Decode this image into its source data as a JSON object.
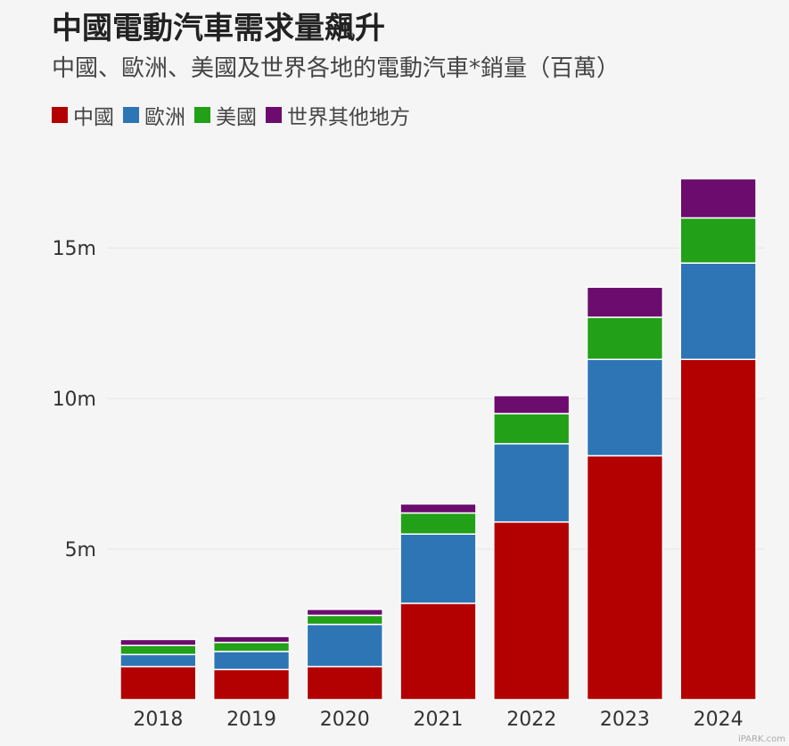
{
  "title": "中國電動汽車需求量飆升",
  "subtitle": "中國、歐洲、美國及世界各地的電動汽車*銷量（百萬）",
  "watermark": "iPARK.com",
  "colors": {
    "china": "#b30000",
    "europe": "#2e75b6",
    "usa": "#22a018",
    "rest": "#6b0c6e"
  },
  "chart_data": {
    "type": "bar",
    "stacked": true,
    "categories": [
      "2018",
      "2019",
      "2020",
      "2021",
      "2022",
      "2023",
      "2024"
    ],
    "series": [
      {
        "name": "中國",
        "key": "china",
        "values": [
          1.1,
          1.0,
          1.1,
          3.2,
          5.9,
          8.1,
          11.3
        ]
      },
      {
        "name": "歐洲",
        "key": "europe",
        "values": [
          0.4,
          0.6,
          1.4,
          2.3,
          2.6,
          3.2,
          3.2
        ]
      },
      {
        "name": "美國",
        "key": "usa",
        "values": [
          0.3,
          0.3,
          0.3,
          0.7,
          1.0,
          1.4,
          1.5
        ]
      },
      {
        "name": "世界其他地方",
        "key": "rest",
        "values": [
          0.2,
          0.2,
          0.2,
          0.3,
          0.6,
          1.0,
          1.3
        ]
      }
    ],
    "yticks": [
      5,
      10,
      15
    ],
    "ytick_labels": [
      "5m",
      "10m",
      "15m"
    ],
    "ylim": [
      0,
      18.5
    ],
    "grid": true,
    "legend_position": "top-left"
  }
}
